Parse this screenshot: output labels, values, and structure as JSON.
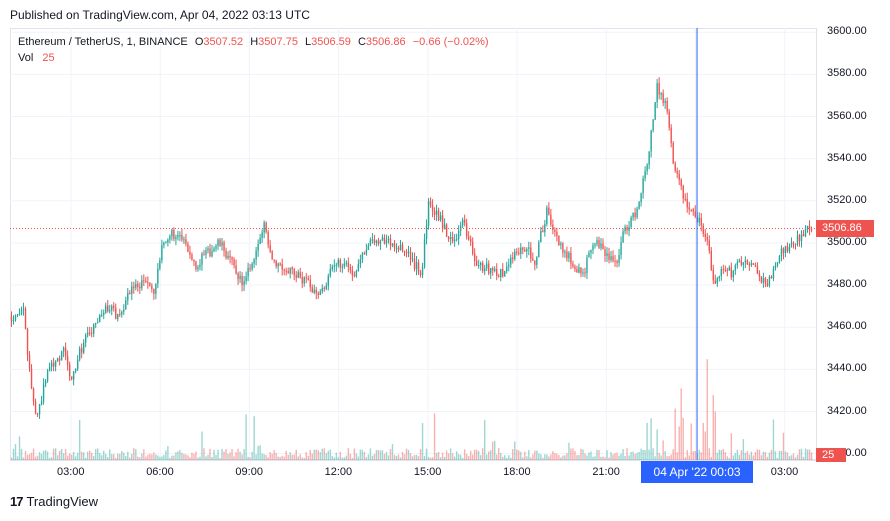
{
  "header": {
    "published_text": "Published on TradingView.com, Apr 04, 2022 03:13 UTC"
  },
  "legend": {
    "symbol_text": "Ethereum / TetherUS, 1, BINANCE",
    "open_label": "O",
    "open_value": "3507.52",
    "high_label": "H",
    "high_value": "3507.75",
    "low_label": "L",
    "low_value": "3506.59",
    "close_label": "C",
    "close_value": "3506.86",
    "change_text": "−0.66 (−0.02%)",
    "vol_label": "Vol",
    "vol_value": "25"
  },
  "colors": {
    "up": "#26a69a",
    "down": "#ef5350",
    "crosshair": "#2962ff",
    "grid": "#f0f3fa",
    "text": "#131722"
  },
  "crosshair_label": "04 Apr '22   00:03",
  "brand": {
    "name": "TradingView",
    "logo_text": "17"
  },
  "chart_data": {
    "type": "candlestick",
    "y_ticks": [
      "3600.00",
      "3580.00",
      "3560.00",
      "3540.00",
      "3520.00",
      "3500.00",
      "3480.00",
      "3460.00",
      "3440.00",
      "3420.00",
      "3400.00"
    ],
    "y_tick_values": [
      3600,
      3580,
      3560,
      3540,
      3520,
      3500,
      3480,
      3460,
      3440,
      3420,
      3400
    ],
    "ylim": [
      3397,
      3602
    ],
    "x_ticks": [
      "03:00",
      "06:00",
      "09:00",
      "12:00",
      "15:00",
      "18:00",
      "21:00",
      "00:00",
      "03:00"
    ],
    "x_tick_hours": [
      3,
      6,
      9,
      12,
      15,
      18,
      21,
      24,
      27
    ],
    "xlim_hours": [
      0.95,
      28.05
    ],
    "crosshair_hour": 24.05,
    "last_price": "3506.86",
    "last_price_value": 3506.86,
    "last_volume": "25",
    "price_path": [
      [
        1.0,
        3465
      ],
      [
        1.3,
        3468
      ],
      [
        1.4,
        3467
      ],
      [
        1.6,
        3440
      ],
      [
        1.8,
        3418
      ],
      [
        2.0,
        3425
      ],
      [
        2.2,
        3440
      ],
      [
        2.5,
        3445
      ],
      [
        2.8,
        3449
      ],
      [
        3.0,
        3432
      ],
      [
        3.2,
        3445
      ],
      [
        3.5,
        3455
      ],
      [
        3.8,
        3460
      ],
      [
        4.2,
        3470
      ],
      [
        4.6,
        3465
      ],
      [
        5.0,
        3478
      ],
      [
        5.5,
        3482
      ],
      [
        5.8,
        3476
      ],
      [
        6.1,
        3500
      ],
      [
        6.4,
        3505
      ],
      [
        6.8,
        3500
      ],
      [
        7.2,
        3490
      ],
      [
        7.6,
        3495
      ],
      [
        8.0,
        3500
      ],
      [
        8.5,
        3488
      ],
      [
        8.8,
        3480
      ],
      [
        9.2,
        3495
      ],
      [
        9.5,
        3508
      ],
      [
        9.8,
        3492
      ],
      [
        10.2,
        3488
      ],
      [
        10.6,
        3485
      ],
      [
        11.0,
        3480
      ],
      [
        11.4,
        3476
      ],
      [
        11.8,
        3488
      ],
      [
        12.2,
        3492
      ],
      [
        12.5,
        3485
      ],
      [
        12.9,
        3498
      ],
      [
        13.3,
        3502
      ],
      [
        13.8,
        3500
      ],
      [
        14.3,
        3495
      ],
      [
        14.8,
        3485
      ],
      [
        15.0,
        3518
      ],
      [
        15.4,
        3512
      ],
      [
        15.8,
        3500
      ],
      [
        16.2,
        3510
      ],
      [
        16.6,
        3490
      ],
      [
        17.0,
        3488
      ],
      [
        17.5,
        3485
      ],
      [
        17.9,
        3495
      ],
      [
        18.3,
        3498
      ],
      [
        18.6,
        3492
      ],
      [
        19.0,
        3515
      ],
      [
        19.4,
        3500
      ],
      [
        19.8,
        3492
      ],
      [
        20.2,
        3485
      ],
      [
        20.6,
        3500
      ],
      [
        21.0,
        3495
      ],
      [
        21.3,
        3490
      ],
      [
        21.6,
        3505
      ],
      [
        22.0,
        3515
      ],
      [
        22.4,
        3540
      ],
      [
        22.7,
        3575
      ],
      [
        23.0,
        3565
      ],
      [
        23.3,
        3535
      ],
      [
        23.6,
        3522
      ],
      [
        24.0,
        3512
      ],
      [
        24.2,
        3508
      ],
      [
        24.4,
        3500
      ],
      [
        24.6,
        3480
      ],
      [
        24.9,
        3490
      ],
      [
        25.2,
        3485
      ],
      [
        25.6,
        3492
      ],
      [
        26.0,
        3488
      ],
      [
        26.4,
        3478
      ],
      [
        26.8,
        3495
      ],
      [
        27.3,
        3500
      ],
      [
        27.6,
        3505
      ],
      [
        27.9,
        3506.86
      ]
    ]
  }
}
